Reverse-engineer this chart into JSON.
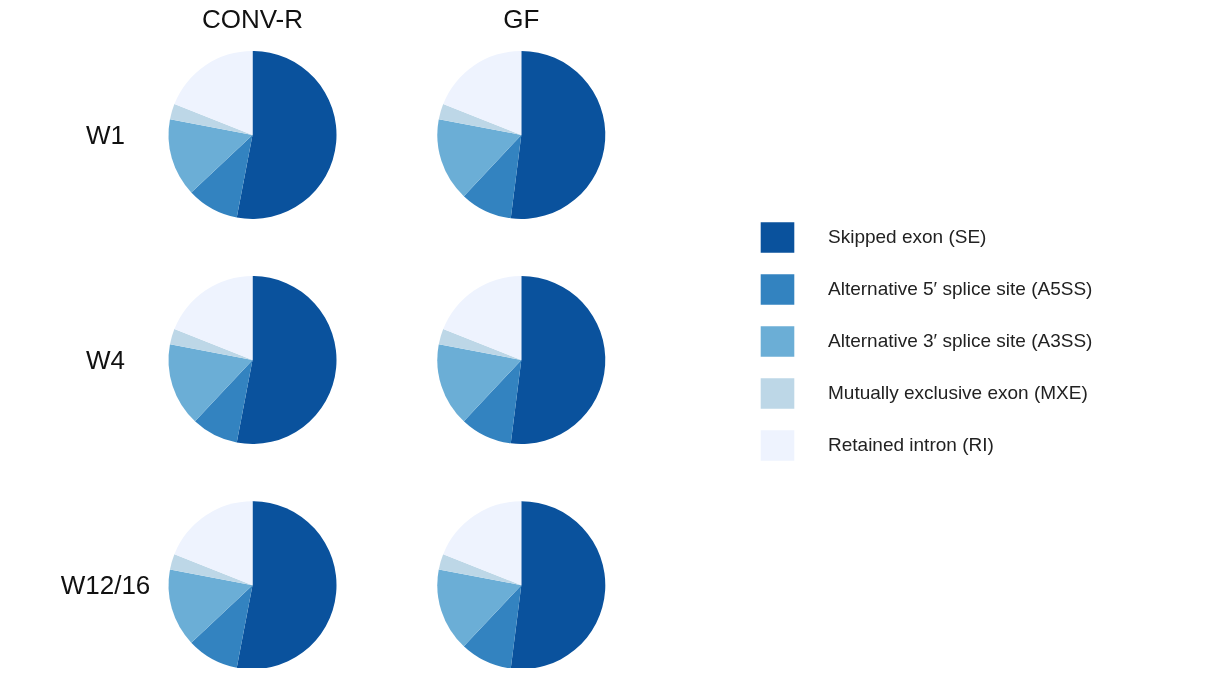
{
  "chart_data": [
    {
      "type": "pie",
      "title": "CONV-R",
      "ylabel": "W1",
      "legend": "right",
      "categories": [
        "Skipped exon (SE)",
        "Alternative 5′ splice site (A5SS)",
        "Alternative 3′ splice site (A3SS)",
        "Mutually exclusive exon (MXE)",
        "Retained intron (RI)"
      ],
      "values": [
        53,
        10,
        15,
        3,
        19
      ],
      "colors": [
        "#0a529d",
        "#3383c0",
        "#6baed6",
        "#bdd7e7",
        "#eef3fe"
      ]
    },
    {
      "type": "pie",
      "title": "GF",
      "categories": [
        null,
        null,
        null,
        null,
        null
      ],
      "values": [
        52,
        10,
        16,
        3,
        19
      ],
      "colors": [
        "#0a529d",
        "#3383c0",
        "#6baed6",
        "#bdd7e7",
        "#eef3fe"
      ]
    },
    {
      "type": "pie",
      "ylabel": "W4",
      "categories": [
        null,
        null,
        null,
        null,
        null
      ],
      "values": [
        53,
        9,
        16,
        3,
        19
      ],
      "colors": [
        "#0a529d",
        "#3383c0",
        "#6baed6",
        "#bdd7e7",
        "#eef3fe"
      ]
    },
    {
      "type": "pie",
      "categories": [
        null,
        null,
        null,
        null,
        null
      ],
      "values": [
        52,
        10,
        16,
        3,
        19
      ],
      "colors": [
        "#0a529d",
        "#3383c0",
        "#6baed6",
        "#bdd7e7",
        "#eef3fe"
      ]
    },
    {
      "type": "pie",
      "ylabel": "W12/16",
      "categories": [
        null,
        null,
        null,
        null,
        null
      ],
      "values": [
        53,
        10,
        15,
        3,
        19
      ],
      "colors": [
        "#0a529d",
        "#3383c0",
        "#6baed6",
        "#bdd7e7",
        "#eef3fe"
      ]
    },
    {
      "type": "pie",
      "categories": [
        null,
        null,
        null,
        null,
        null
      ],
      "values": [
        52,
        10,
        16,
        3,
        19
      ],
      "colors": [
        "#0a529d",
        "#3383c0",
        "#6baed6",
        "#bdd7e7",
        "#eef3fe"
      ]
    }
  ]
}
